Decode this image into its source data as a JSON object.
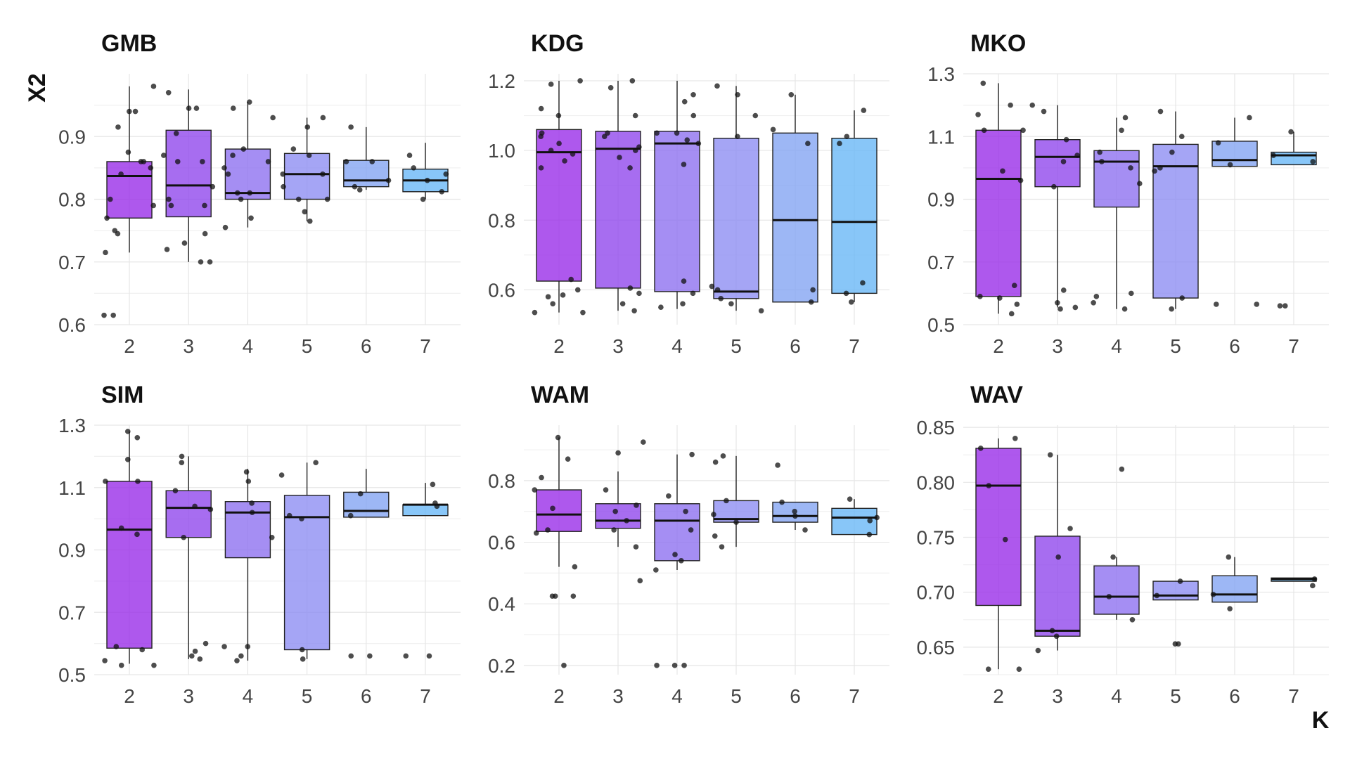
{
  "chart_data": {
    "type": "box",
    "xlabel": "K",
    "ylabel": "X2",
    "categories": [
      "2",
      "3",
      "4",
      "5",
      "6",
      "7"
    ],
    "colors": [
      "#9a2ee8",
      "#9148ec",
      "#8f72f0",
      "#8f8ef2",
      "#85a5f2",
      "#6ab8f6"
    ],
    "panels": [
      {
        "title": "GMB",
        "ylim": [
          0.6,
          1.0
        ],
        "yticks": [
          "0.6",
          "0.7",
          "0.8",
          "0.9"
        ],
        "ytick_values": [
          0.6,
          0.7,
          0.8,
          0.9
        ],
        "boxes": [
          {
            "low": 0.715,
            "q1": 0.77,
            "median": 0.837,
            "q3": 0.86,
            "high": 0.98
          },
          {
            "low": 0.7,
            "q1": 0.772,
            "median": 0.822,
            "q3": 0.91,
            "high": 0.975
          },
          {
            "low": 0.755,
            "q1": 0.8,
            "median": 0.81,
            "q3": 0.88,
            "high": 0.955
          },
          {
            "low": 0.765,
            "q1": 0.8,
            "median": 0.84,
            "q3": 0.873,
            "high": 0.93
          },
          {
            "low": 0.815,
            "q1": 0.82,
            "median": 0.83,
            "q3": 0.862,
            "high": 0.915
          },
          {
            "low": 0.8,
            "q1": 0.812,
            "median": 0.83,
            "q3": 0.848,
            "high": 0.89
          }
        ],
        "points": [
          [
            0.615,
            0.615,
            0.715,
            0.745,
            0.75,
            0.77,
            0.79,
            0.8,
            0.84,
            0.85,
            0.86,
            0.86,
            0.875,
            0.915,
            0.94,
            0.94,
            0.98
          ],
          [
            0.7,
            0.7,
            0.72,
            0.73,
            0.745,
            0.79,
            0.79,
            0.8,
            0.82,
            0.86,
            0.86,
            0.87,
            0.905,
            0.945,
            0.945,
            0.97
          ],
          [
            0.755,
            0.77,
            0.8,
            0.81,
            0.81,
            0.84,
            0.85,
            0.86,
            0.87,
            0.88,
            0.93,
            0.945,
            0.955
          ],
          [
            0.765,
            0.78,
            0.8,
            0.8,
            0.82,
            0.84,
            0.84,
            0.87,
            0.88,
            0.915,
            0.93
          ],
          [
            0.815,
            0.82,
            0.83,
            0.86,
            0.86,
            0.915
          ],
          [
            0.8,
            0.812,
            0.83,
            0.84,
            0.85,
            0.87
          ]
        ]
      },
      {
        "title": "KDG",
        "ylim": [
          0.5,
          1.22
        ],
        "yticks": [
          "0.6",
          "0.8",
          "1.0",
          "1.2"
        ],
        "ytick_values": [
          0.6,
          0.8,
          1.0,
          1.2
        ],
        "boxes": [
          {
            "low": 0.535,
            "q1": 0.625,
            "median": 0.995,
            "q3": 1.06,
            "high": 1.2
          },
          {
            "low": 0.54,
            "q1": 0.605,
            "median": 1.005,
            "q3": 1.055,
            "high": 1.2
          },
          {
            "low": 0.545,
            "q1": 0.595,
            "median": 1.02,
            "q3": 1.055,
            "high": 1.2
          },
          {
            "low": 0.54,
            "q1": 0.575,
            "median": 0.595,
            "q3": 1.035,
            "high": 1.185
          },
          {
            "low": 0.565,
            "q1": 0.565,
            "median": 0.8,
            "q3": 1.05,
            "high": 1.16
          },
          {
            "low": 0.565,
            "q1": 0.59,
            "median": 0.795,
            "q3": 1.035,
            "high": 1.115
          }
        ],
        "points": [
          [
            0.535,
            0.535,
            0.56,
            0.58,
            0.585,
            0.6,
            0.63,
            0.95,
            0.97,
            0.99,
            1.0,
            1.02,
            1.04,
            1.05,
            1.1,
            1.12,
            1.19,
            1.2
          ],
          [
            0.54,
            0.56,
            0.59,
            0.605,
            0.95,
            0.98,
            1.0,
            1.01,
            1.04,
            1.05,
            1.1,
            1.18,
            1.2
          ],
          [
            0.55,
            0.56,
            0.59,
            0.625,
            0.96,
            1.02,
            1.03,
            1.05,
            1.05,
            1.1,
            1.14,
            1.16
          ],
          [
            0.54,
            0.56,
            0.575,
            0.6,
            0.61,
            1.04,
            1.1,
            1.16,
            1.185
          ],
          [
            0.565,
            0.6,
            1.02,
            1.06,
            1.16
          ],
          [
            0.565,
            0.59,
            0.62,
            1.02,
            1.04,
            1.115
          ]
        ]
      },
      {
        "title": "MKO",
        "ylim": [
          0.5,
          1.3
        ],
        "yticks": [
          "0.5",
          "0.7",
          "0.9",
          "1.1",
          "1.3"
        ],
        "ytick_values": [
          0.5,
          0.7,
          0.9,
          1.1,
          1.3
        ],
        "boxes": [
          {
            "low": 0.535,
            "q1": 0.59,
            "median": 0.965,
            "q3": 1.12,
            "high": 1.27
          },
          {
            "low": 0.555,
            "q1": 0.94,
            "median": 1.035,
            "q3": 1.09,
            "high": 1.2
          },
          {
            "low": 0.55,
            "q1": 0.875,
            "median": 1.02,
            "q3": 1.055,
            "high": 1.16
          },
          {
            "low": 0.55,
            "q1": 0.585,
            "median": 1.005,
            "q3": 1.075,
            "high": 1.18
          },
          {
            "low": 1.005,
            "q1": 1.005,
            "median": 1.025,
            "q3": 1.085,
            "high": 1.16
          },
          {
            "low": 1.01,
            "q1": 1.01,
            "median": 1.04,
            "q3": 1.05,
            "high": 1.115
          }
        ],
        "points": [
          [
            0.535,
            0.565,
            0.585,
            0.59,
            0.625,
            0.96,
            0.99,
            1.12,
            1.12,
            1.17,
            1.2,
            1.27
          ],
          [
            0.55,
            0.555,
            0.57,
            0.61,
            0.94,
            1.02,
            1.04,
            1.09,
            1.18,
            1.2
          ],
          [
            0.55,
            0.57,
            0.59,
            0.6,
            0.95,
            1.0,
            1.02,
            1.05,
            1.12,
            1.16
          ],
          [
            0.55,
            0.585,
            0.99,
            1.0,
            1.05,
            1.1,
            1.18
          ],
          [
            0.565,
            0.565,
            1.01,
            1.08,
            1.16
          ],
          [
            0.56,
            0.56,
            1.02,
            1.04,
            1.115
          ]
        ]
      },
      {
        "title": "SIM",
        "ylim": [
          0.5,
          1.3
        ],
        "yticks": [
          "0.5",
          "0.7",
          "0.9",
          "1.1",
          "1.3"
        ],
        "ytick_values": [
          0.5,
          0.7,
          0.9,
          1.1,
          1.3
        ],
        "boxes": [
          {
            "low": 0.535,
            "q1": 0.585,
            "median": 0.965,
            "q3": 1.12,
            "high": 1.28
          },
          {
            "low": 0.55,
            "q1": 0.94,
            "median": 1.035,
            "q3": 1.09,
            "high": 1.2
          },
          {
            "low": 0.545,
            "q1": 0.875,
            "median": 1.02,
            "q3": 1.055,
            "high": 1.16
          },
          {
            "low": 0.55,
            "q1": 0.58,
            "median": 1.005,
            "q3": 1.075,
            "high": 1.18
          },
          {
            "low": 1.005,
            "q1": 1.005,
            "median": 1.025,
            "q3": 1.085,
            "high": 1.16
          },
          {
            "low": 1.01,
            "q1": 1.01,
            "median": 1.045,
            "q3": 1.045,
            "high": 1.115
          }
        ],
        "points": [
          [
            0.53,
            0.53,
            0.545,
            0.58,
            0.59,
            0.95,
            0.97,
            1.12,
            1.12,
            1.19,
            1.26,
            1.28
          ],
          [
            0.55,
            0.56,
            0.575,
            0.6,
            0.94,
            1.03,
            1.04,
            1.09,
            1.18,
            1.2
          ],
          [
            0.545,
            0.56,
            0.59,
            0.59,
            0.94,
            1.02,
            1.05,
            1.12,
            1.15
          ],
          [
            0.55,
            0.58,
            1.0,
            1.01,
            1.14,
            1.18
          ],
          [
            0.56,
            0.56,
            1.01,
            1.08
          ],
          [
            0.56,
            0.56,
            1.04,
            1.05,
            1.11
          ]
        ]
      },
      {
        "title": "WAM",
        "ylim": [
          0.17,
          0.98
        ],
        "yticks": [
          "0.2",
          "0.4",
          "0.6",
          "0.8"
        ],
        "ytick_values": [
          0.2,
          0.4,
          0.6,
          0.8
        ],
        "boxes": [
          {
            "low": 0.52,
            "q1": 0.635,
            "median": 0.69,
            "q3": 0.77,
            "high": 0.94
          },
          {
            "low": 0.585,
            "q1": 0.645,
            "median": 0.67,
            "q3": 0.725,
            "high": 0.83
          },
          {
            "low": 0.51,
            "q1": 0.54,
            "median": 0.67,
            "q3": 0.725,
            "high": 0.885
          },
          {
            "low": 0.585,
            "q1": 0.665,
            "median": 0.675,
            "q3": 0.735,
            "high": 0.88
          },
          {
            "low": 0.64,
            "q1": 0.665,
            "median": 0.685,
            "q3": 0.73,
            "high": 0.73
          },
          {
            "low": 0.625,
            "q1": 0.625,
            "median": 0.68,
            "q3": 0.71,
            "high": 0.74
          }
        ],
        "points": [
          [
            0.2,
            0.425,
            0.425,
            0.425,
            0.52,
            0.63,
            0.64,
            0.71,
            0.77,
            0.81,
            0.87,
            0.94
          ],
          [
            0.475,
            0.585,
            0.64,
            0.67,
            0.7,
            0.72,
            0.77,
            0.89,
            0.925
          ],
          [
            0.2,
            0.2,
            0.2,
            0.51,
            0.54,
            0.56,
            0.64,
            0.7,
            0.75,
            0.885
          ],
          [
            0.585,
            0.62,
            0.665,
            0.69,
            0.735,
            0.86,
            0.88
          ],
          [
            0.64,
            0.685,
            0.7,
            0.73,
            0.85
          ],
          [
            0.625,
            0.67,
            0.68,
            0.74
          ]
        ]
      },
      {
        "title": "WAV",
        "ylim": [
          0.625,
          0.852
        ],
        "yticks": [
          "0.65",
          "0.70",
          "0.75",
          "0.80",
          "0.85"
        ],
        "ytick_values": [
          0.65,
          0.7,
          0.75,
          0.8,
          0.85
        ],
        "boxes": [
          {
            "low": 0.63,
            "q1": 0.688,
            "median": 0.797,
            "q3": 0.831,
            "high": 0.84
          },
          {
            "low": 0.647,
            "q1": 0.66,
            "median": 0.665,
            "q3": 0.751,
            "high": 0.825
          },
          {
            "low": 0.675,
            "q1": 0.68,
            "median": 0.696,
            "q3": 0.724,
            "high": 0.732
          },
          {
            "low": 0.693,
            "q1": 0.693,
            "median": 0.697,
            "q3": 0.71,
            "high": 0.71
          },
          {
            "low": 0.691,
            "q1": 0.691,
            "median": 0.698,
            "q3": 0.715,
            "high": 0.732
          },
          {
            "low": 0.71,
            "q1": 0.71,
            "median": 0.712,
            "q3": 0.713,
            "high": 0.713
          }
        ],
        "points": [
          [
            0.63,
            0.63,
            0.748,
            0.797,
            0.831,
            0.84
          ],
          [
            0.647,
            0.66,
            0.665,
            0.732,
            0.758,
            0.825
          ],
          [
            0.675,
            0.696,
            0.732,
            0.812
          ],
          [
            0.653,
            0.653,
            0.697,
            0.71
          ],
          [
            0.685,
            0.698,
            0.732
          ],
          [
            0.706,
            0.712
          ]
        ]
      }
    ]
  }
}
